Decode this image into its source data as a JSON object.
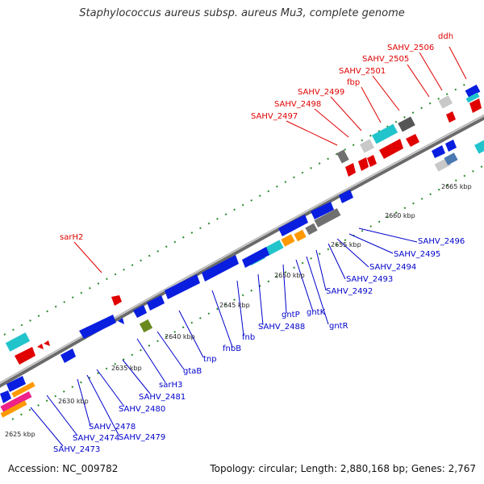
{
  "header": {
    "title": "Staphylococcus aureus subsp. aureus Mu3, complete genome"
  },
  "footer": {
    "accession": "Accession: NC_009782",
    "summary": "Topology: circular; Length: 2,880,168 bp; Genes: 2,767"
  },
  "ticks": [
    "2625 kbp",
    "2630 kbp",
    "2635 kbp",
    "2640 kbp",
    "2645 kbp",
    "2650 kbp",
    "2655 kbp",
    "2660 kbp",
    "2665 kbp"
  ],
  "labels_top": [
    "ddh",
    "SAHV_2506",
    "SAHV_2505",
    "SAHV_2501",
    "fbp",
    "SAHV_2499",
    "SAHV_2498",
    "SAHV_2497",
    "sarH2"
  ],
  "labels_bottom": [
    "SAHV_2496",
    "SAHV_2495",
    "SAHV_2494",
    "SAHV_2493",
    "SAHV_2492",
    "gntR",
    "gntK",
    "gntP",
    "SAHV_2488",
    "fnb",
    "fnbB",
    "tnp",
    "gtaB",
    "sarH3",
    "SAHV_2481",
    "SAHV_2480",
    "SAHV_2479",
    "SAHV_2478",
    "SAHV_2474",
    "SAHV_2473"
  ],
  "colors": {
    "forward_cds": "#e00000",
    "reverse_cds": "#0a1ee0",
    "rna": "#22c4cc",
    "other": "#ff9900",
    "pseudo": "#707070",
    "label_top": "#e00000",
    "label_bottom": "#0000cc",
    "backbone": "#8c8c8c",
    "gc_skew": "#2a8a2a"
  }
}
